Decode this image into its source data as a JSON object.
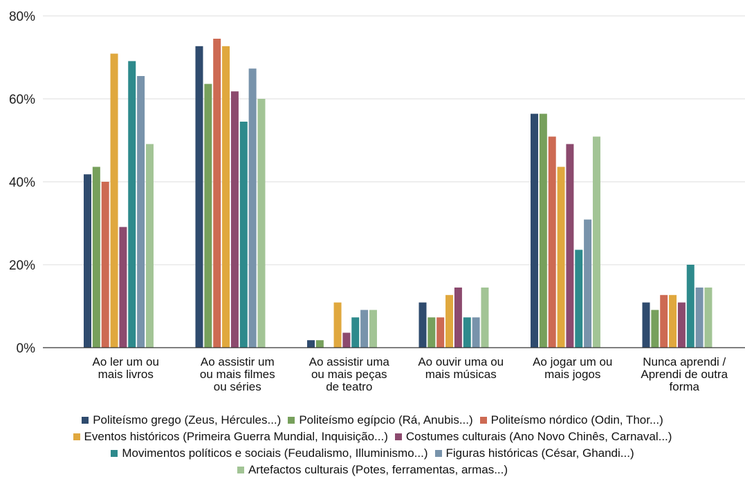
{
  "chart_data": {
    "type": "bar",
    "ylim": [
      0,
      80
    ],
    "yticks": [
      "0%",
      "20%",
      "40%",
      "60%",
      "80%"
    ],
    "categories": [
      [
        "Ao ler um ou",
        "mais livros"
      ],
      [
        "Ao assistir um",
        "ou mais filmes",
        "ou séries"
      ],
      [
        "Ao assistir uma",
        "ou mais peças",
        "de teatro"
      ],
      [
        "Ao ouvir uma  ou",
        "mais músicas"
      ],
      [
        "Ao jogar um ou",
        "mais jogos"
      ],
      [
        "Nunca aprendi /",
        "Aprendi de outra",
        "forma"
      ]
    ],
    "series": [
      {
        "name": "Politeísmo grego (Zeus, Hércules...)",
        "color": "#2f4b6e",
        "values": [
          41.8,
          72.7,
          1.8,
          10.9,
          56.4,
          10.9
        ]
      },
      {
        "name": "Politeísmo egípcio (Rá, Anubis...)",
        "color": "#77a05c",
        "values": [
          43.6,
          63.6,
          1.8,
          7.3,
          56.4,
          9.1
        ]
      },
      {
        "name": "Politeísmo nórdico (Odin, Thor...)",
        "color": "#cd6a53",
        "values": [
          40.0,
          74.5,
          0,
          7.3,
          50.9,
          12.7
        ]
      },
      {
        "name": "Eventos históricos (Primeira Guerra Mundial, Inquisição...)",
        "color": "#e0a83e",
        "values": [
          70.9,
          72.7,
          10.9,
          12.7,
          43.6,
          12.7
        ]
      },
      {
        "name": "Costumes culturais (Ano Novo Chinês, Carnaval...)",
        "color": "#8c4a6e",
        "values": [
          29.1,
          61.8,
          3.6,
          14.5,
          49.1,
          10.9
        ]
      },
      {
        "name": "Movimentos políticos e sociais (Feudalismo, Illuminismo...)",
        "color": "#2e8a8c",
        "values": [
          69.1,
          54.5,
          7.3,
          7.3,
          23.6,
          20.0
        ]
      },
      {
        "name": "Figuras históricas (César, Ghandi...)",
        "color": "#7893ab",
        "values": [
          65.5,
          67.3,
          9.1,
          7.3,
          30.9,
          14.5
        ]
      },
      {
        "name": "Artefactos culturais (Potes, ferramentas, armas...)",
        "color": "#a2c495",
        "values": [
          49.1,
          60.0,
          9.1,
          14.5,
          50.9,
          14.5
        ]
      }
    ],
    "legend_rows": [
      [
        0,
        1,
        2
      ],
      [
        3,
        4
      ],
      [
        5,
        6
      ],
      [
        7
      ]
    ]
  }
}
